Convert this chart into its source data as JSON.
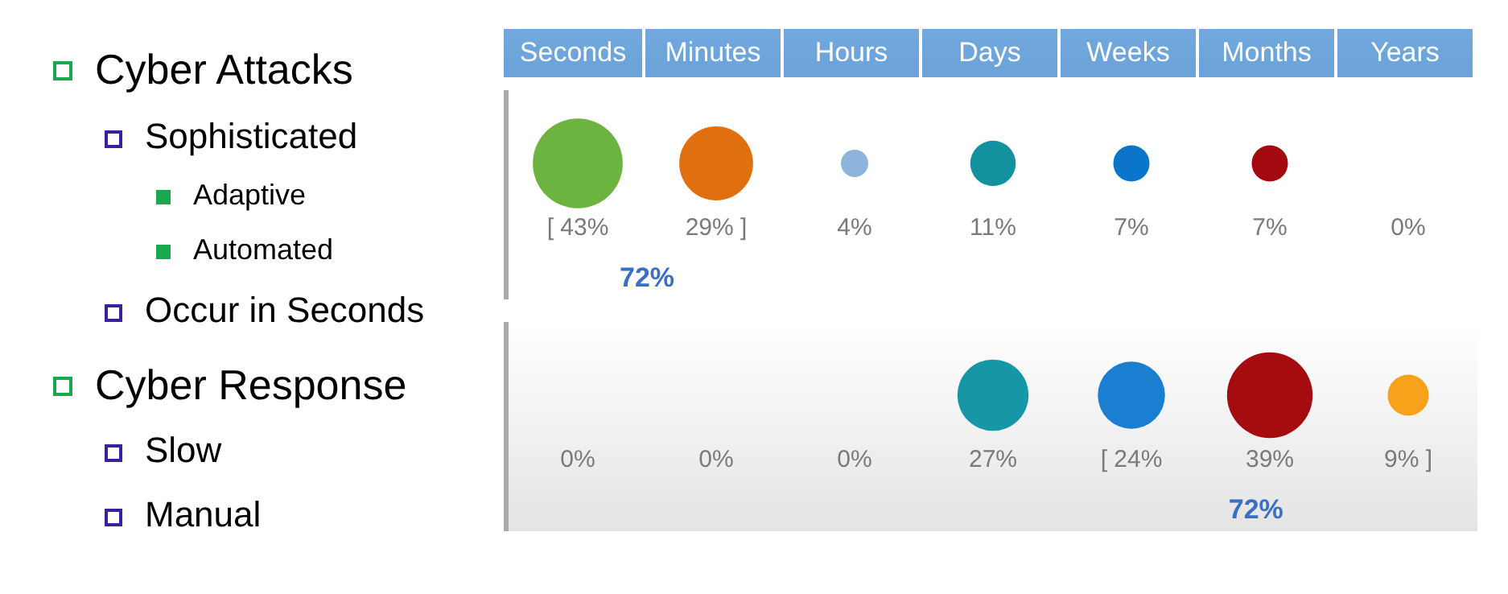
{
  "chart_data": [
    {
      "type": "other",
      "annotations": [
        "Cyber Attacks",
        "Sophisticated",
        "Adaptive",
        "Automated",
        "Occur in Seconds",
        "Cyber Response",
        "Slow",
        "Manual"
      ]
    },
    {
      "type": "other",
      "categories": [
        "Seconds",
        "Minutes",
        "Hours",
        "Days",
        "Weeks",
        "Months",
        "Years"
      ],
      "values": [
        43,
        29,
        4,
        11,
        7,
        7,
        0
      ],
      "colors": [
        "#6db33f",
        "#e0700f",
        "#8fb4dc",
        "#13919f",
        "#0b76c9",
        "#a3090f",
        null
      ],
      "value_labels": [
        "[ 43%",
        "29% ]",
        "4%",
        "11%",
        "7%",
        "7%",
        "0%"
      ],
      "annotations": [
        "72%"
      ]
    },
    {
      "type": "other",
      "values": [
        0,
        0,
        0,
        27,
        24,
        39,
        9
      ],
      "colors": [
        null,
        null,
        null,
        "#1597a5",
        "#1a7fd0",
        "#a50c10",
        "#f7a21b"
      ],
      "value_labels": [
        "0%",
        "0%",
        "0%",
        "27%",
        "[ 24%",
        "39%",
        "9% ]"
      ],
      "annotations": [
        "72%"
      ]
    }
  ]
}
